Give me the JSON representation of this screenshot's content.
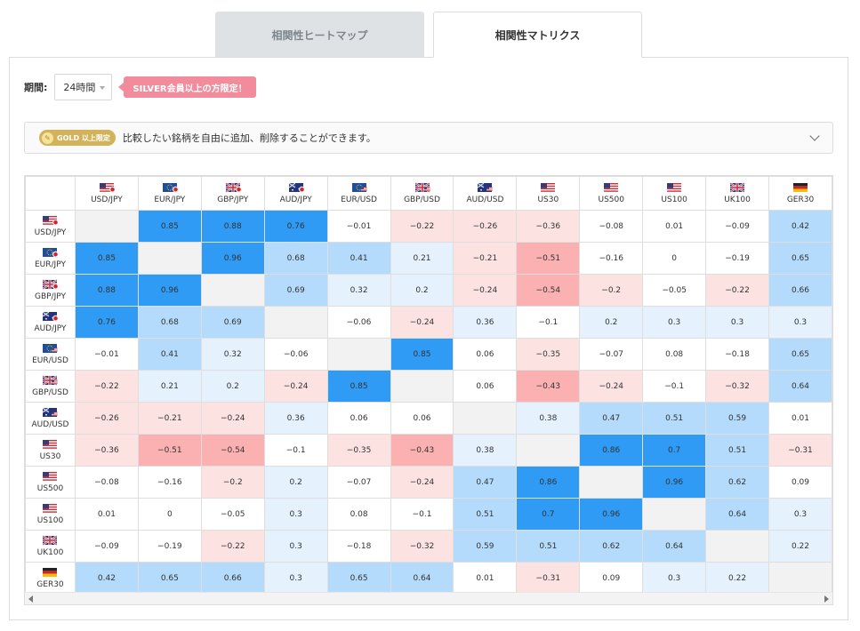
{
  "tabs": {
    "heatmap_label": "相関性ヒートマップ",
    "matrix_label": "相関性マトリクス"
  },
  "period": {
    "label": "期間:",
    "value": "24時間"
  },
  "silver_notice": "SILVER会員以上の方限定！",
  "gold": {
    "badge_label": "GOLD 以上限定",
    "text": "比較したい銘柄を自由に追加、削除することができます。"
  },
  "colors": {
    "strong_pos": "#2f9bf4",
    "mid_pos": "#b4dbfb",
    "light_pos": "#e5f2fd",
    "light_neg": "#fde2e2",
    "mid_neg": "#fbb1b2",
    "diagonal": "#f2f2f2"
  },
  "symbols": [
    {
      "name": "USD/JPY",
      "flag": "us-jp"
    },
    {
      "name": "EUR/JPY",
      "flag": "eu-jp"
    },
    {
      "name": "GBP/JPY",
      "flag": "gb-jp"
    },
    {
      "name": "AUD/JPY",
      "flag": "au-jp"
    },
    {
      "name": "EUR/USD",
      "flag": "eu-us"
    },
    {
      "name": "GBP/USD",
      "flag": "gb-us"
    },
    {
      "name": "AUD/USD",
      "flag": "au-us"
    },
    {
      "name": "US30",
      "flag": "us"
    },
    {
      "name": "US500",
      "flag": "us"
    },
    {
      "name": "US100",
      "flag": "us"
    },
    {
      "name": "UK100",
      "flag": "gb"
    },
    {
      "name": "GER30",
      "flag": "de"
    }
  ],
  "matrix": [
    [
      null,
      0.85,
      0.88,
      0.76,
      -0.01,
      -0.22,
      -0.26,
      -0.36,
      -0.08,
      0.01,
      -0.09,
      0.42
    ],
    [
      0.85,
      null,
      0.96,
      0.68,
      0.41,
      0.21,
      -0.21,
      -0.51,
      -0.16,
      0,
      -0.19,
      0.65
    ],
    [
      0.88,
      0.96,
      null,
      0.69,
      0.32,
      0.2,
      -0.24,
      -0.54,
      -0.2,
      -0.05,
      -0.22,
      0.66
    ],
    [
      0.76,
      0.68,
      0.69,
      null,
      -0.06,
      -0.24,
      0.36,
      -0.1,
      0.2,
      0.3,
      0.3,
      0.3
    ],
    [
      -0.01,
      0.41,
      0.32,
      -0.06,
      null,
      0.85,
      0.06,
      -0.35,
      -0.07,
      0.08,
      -0.18,
      0.65
    ],
    [
      -0.22,
      0.21,
      0.2,
      -0.24,
      0.85,
      null,
      0.06,
      -0.43,
      -0.24,
      -0.1,
      -0.32,
      0.64
    ],
    [
      -0.26,
      -0.21,
      -0.24,
      0.36,
      0.06,
      0.06,
      null,
      0.38,
      0.47,
      0.51,
      0.59,
      0.01
    ],
    [
      -0.36,
      -0.51,
      -0.54,
      -0.1,
      -0.35,
      -0.43,
      0.38,
      null,
      0.86,
      0.7,
      0.51,
      -0.31
    ],
    [
      -0.08,
      -0.16,
      -0.2,
      0.2,
      -0.07,
      -0.24,
      0.47,
      0.86,
      null,
      0.96,
      0.62,
      0.09
    ],
    [
      0.01,
      0,
      -0.05,
      0.3,
      0.08,
      -0.1,
      0.51,
      0.7,
      0.96,
      null,
      0.64,
      0.3
    ],
    [
      -0.09,
      -0.19,
      -0.22,
      0.3,
      -0.18,
      -0.32,
      0.59,
      0.51,
      0.62,
      0.64,
      null,
      0.22
    ],
    [
      0.42,
      0.65,
      0.66,
      0.3,
      0.65,
      0.64,
      0.01,
      -0.31,
      0.09,
      0.3,
      0.22,
      null
    ]
  ]
}
